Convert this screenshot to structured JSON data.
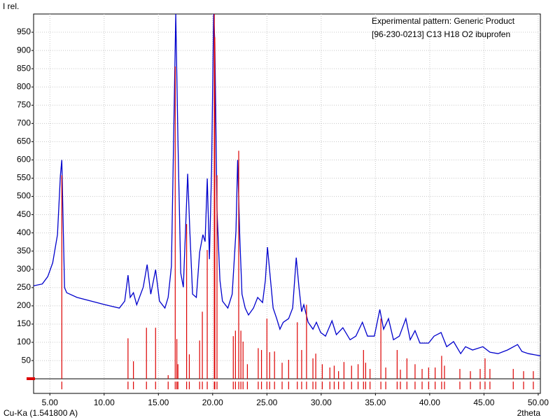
{
  "chart_data": {
    "type": "line",
    "y_title": "I rel.",
    "x_title": "2theta",
    "x_note": "Cu-Ka (1.541800 A)",
    "xlim": [
      3.5,
      50.2
    ],
    "ylim": [
      -40,
      1000
    ],
    "xticks": [
      {
        "value": 5,
        "label": "5.00"
      },
      {
        "value": 10,
        "label": "10.00"
      },
      {
        "value": 15,
        "label": "15.00"
      },
      {
        "value": 20,
        "label": "20.00"
      },
      {
        "value": 25,
        "label": "25.00"
      },
      {
        "value": 30,
        "label": "30.00"
      },
      {
        "value": 35,
        "label": "35.00"
      },
      {
        "value": 40,
        "label": "40.00"
      },
      {
        "value": 45,
        "label": "45.00"
      },
      {
        "value": 50,
        "label": "50.00"
      }
    ],
    "yticks": [
      50,
      100,
      150,
      200,
      250,
      300,
      350,
      400,
      450,
      500,
      550,
      600,
      650,
      700,
      750,
      800,
      850,
      900,
      950
    ],
    "grid": true,
    "series": [
      {
        "name": "Experimental pattern: Generic Product",
        "color": "#0000cc",
        "style": "line",
        "x": [
          3.5,
          4.3,
          4.8,
          5.26,
          5.7,
          5.97,
          6.1,
          6.35,
          6.55,
          7.5,
          8.8,
          10.1,
          11.4,
          11.9,
          12.2,
          12.4,
          12.7,
          13.0,
          13.6,
          13.96,
          14.3,
          14.74,
          15.1,
          15.6,
          15.9,
          16.2,
          16.4,
          16.6,
          16.8,
          17.06,
          17.3,
          17.5,
          17.7,
          17.9,
          18.15,
          18.5,
          18.8,
          19.1,
          19.3,
          19.5,
          19.7,
          19.9,
          20.09,
          20.2,
          20.4,
          20.67,
          20.9,
          21.4,
          21.8,
          22.15,
          22.3,
          22.5,
          22.7,
          23.0,
          23.3,
          23.76,
          24.15,
          24.6,
          24.86,
          25.05,
          25.3,
          25.57,
          25.9,
          26.2,
          26.5,
          27.0,
          27.37,
          27.7,
          27.95,
          28.2,
          28.4,
          28.8,
          29.24,
          29.56,
          29.95,
          30.4,
          31.0,
          31.4,
          32.0,
          32.66,
          33.2,
          33.8,
          34.27,
          34.9,
          35.4,
          35.75,
          36.2,
          36.66,
          37.2,
          37.8,
          38.2,
          38.65,
          39.1,
          39.9,
          40.4,
          41.05,
          41.56,
          42.2,
          42.85,
          43.3,
          43.95,
          44.9,
          45.55,
          46.3,
          47.17,
          48.1,
          48.5,
          49.1,
          50.2
        ],
        "values": [
          255,
          260,
          280,
          318,
          395,
          558,
          600,
          250,
          236,
          223,
          213,
          203,
          194,
          213,
          284,
          223,
          236,
          203,
          251,
          313,
          232,
          299,
          213,
          194,
          223,
          309,
          654,
          1000,
          654,
          290,
          251,
          405,
          562,
          405,
          232,
          223,
          347,
          395,
          376,
          549,
          328,
          578,
          1000,
          923,
          462,
          270,
          213,
          194,
          232,
          405,
          600,
          386,
          232,
          194,
          175,
          194,
          223,
          209,
          270,
          361,
          280,
          194,
          165,
          136,
          155,
          165,
          194,
          332,
          251,
          184,
          203,
          155,
          136,
          155,
          127,
          117,
          159,
          121,
          140,
          107,
          117,
          155,
          117,
          117,
          190,
          136,
          165,
          107,
          117,
          165,
          107,
          132,
          98,
          98,
          117,
          127,
          88,
          102,
          69,
          88,
          79,
          88,
          73,
          69,
          79,
          94,
          75,
          69,
          63
        ]
      },
      {
        "name": "[96-230-0213] C13 H18 O2 ibuprofen",
        "color": "#dd0000",
        "style": "stick",
        "x": [
          6.1,
          12.2,
          12.7,
          13.9,
          14.74,
          15.9,
          16.55,
          16.7,
          16.8,
          17.6,
          17.85,
          18.8,
          19.05,
          19.5,
          20.15,
          20.2,
          20.4,
          21.9,
          22.1,
          22.4,
          22.6,
          22.8,
          23.2,
          24.2,
          24.5,
          25.0,
          25.25,
          25.7,
          26.4,
          27.0,
          27.8,
          28.2,
          28.65,
          29.24,
          29.5,
          30.1,
          30.8,
          31.2,
          31.6,
          32.1,
          32.8,
          33.4,
          33.9,
          34.1,
          34.5,
          35.5,
          35.95,
          37.0,
          37.3,
          37.9,
          38.65,
          39.3,
          39.9,
          40.5,
          41.1,
          41.36,
          42.78,
          43.75,
          44.65,
          45.1,
          45.55,
          47.7,
          48.65,
          49.55
        ],
        "values": [
          558,
          111,
          48,
          140,
          140,
          10,
          856,
          109,
          40,
          424,
          67,
          105,
          184,
          353,
          1000,
          936,
          558,
          117,
          132,
          625,
          132,
          102,
          40,
          84,
          79,
          165,
          73,
          75,
          44,
          52,
          155,
          79,
          203,
          56,
          69,
          40,
          31,
          36,
          21,
          46,
          36,
          40,
          79,
          44,
          27,
          165,
          31,
          79,
          25,
          56,
          40,
          27,
          31,
          31,
          63,
          36,
          27,
          21,
          27,
          56,
          27,
          27,
          21,
          21
        ]
      }
    ]
  }
}
